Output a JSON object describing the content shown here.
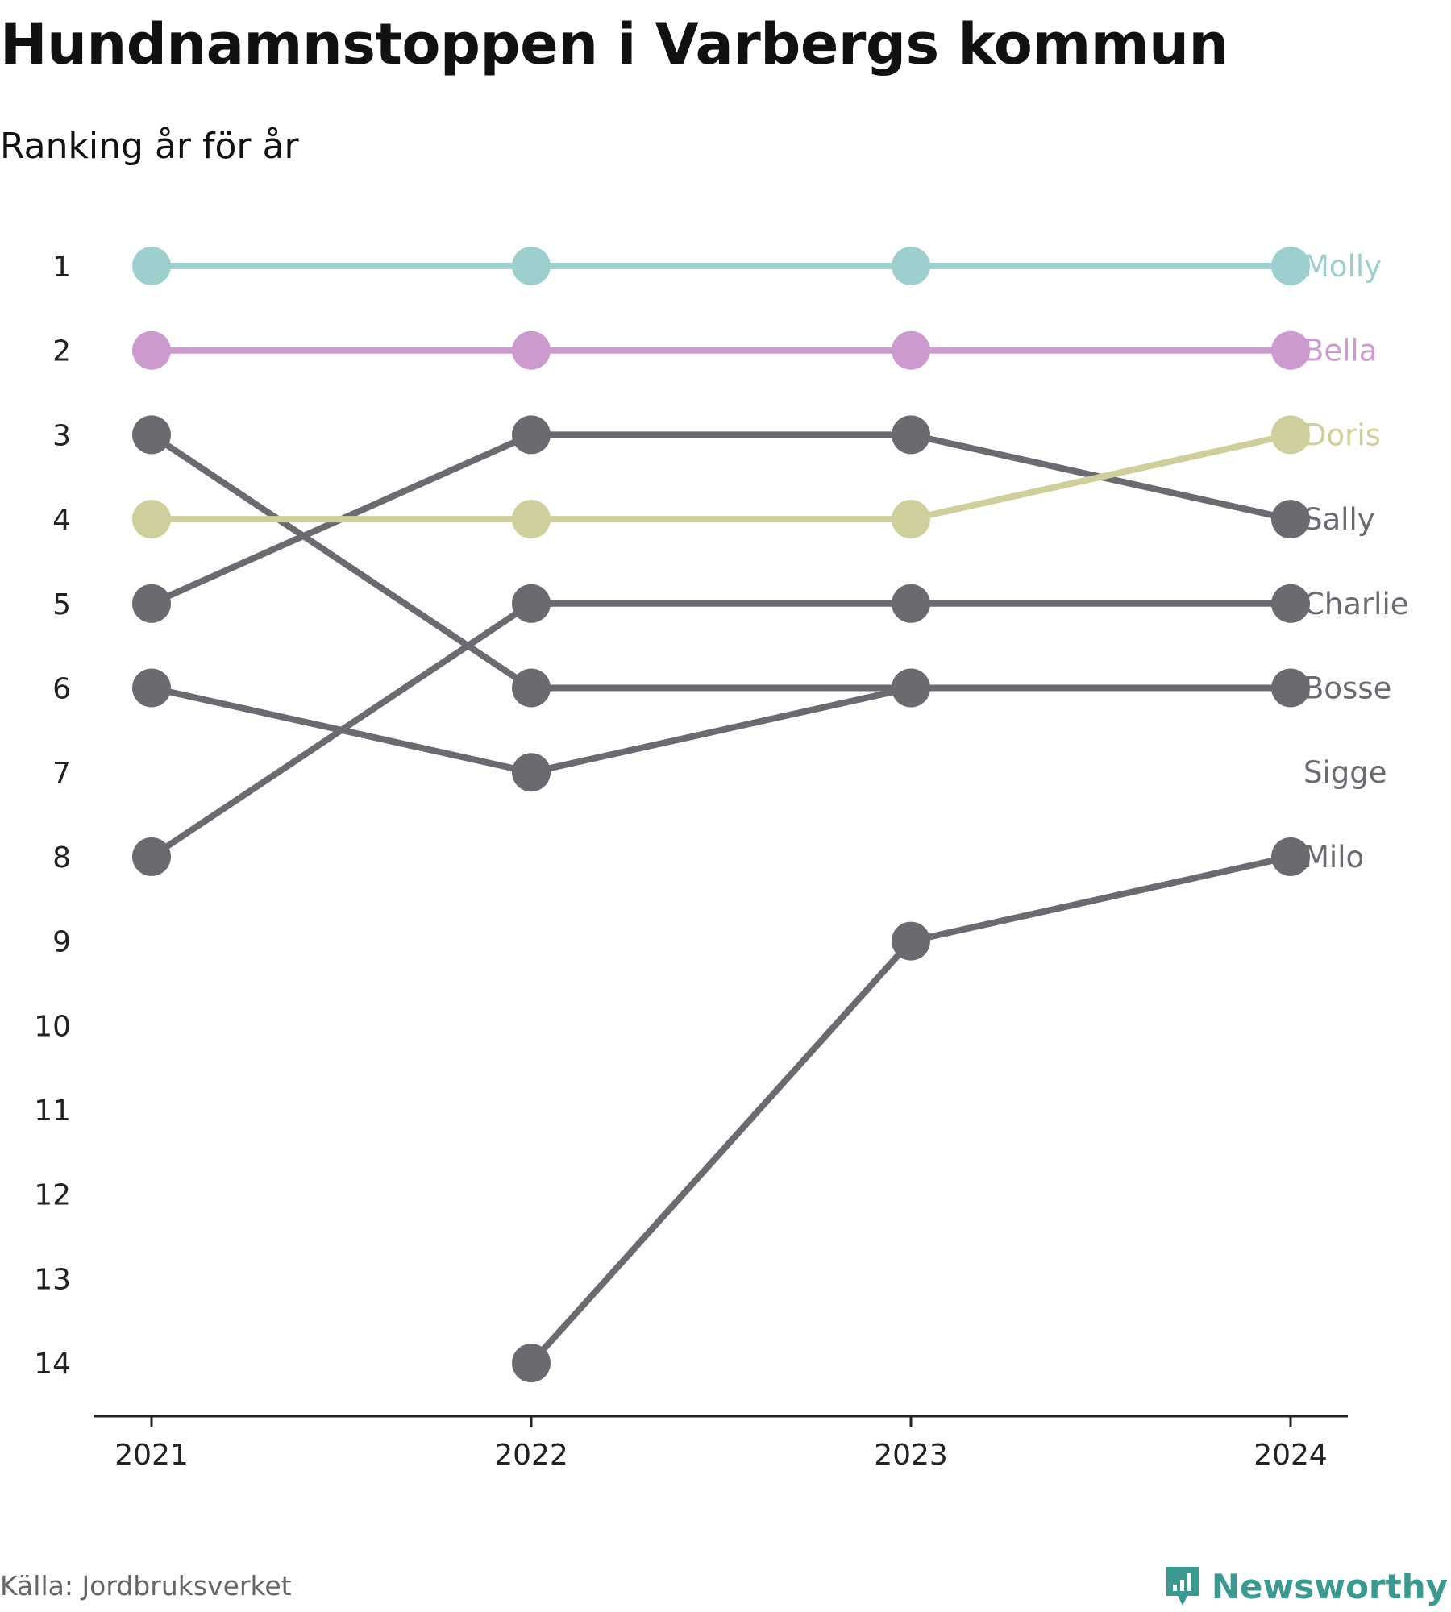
{
  "title": "Hundnamnstoppen i Varbergs kommun",
  "subtitle": "Ranking år för år",
  "source": "Källa: Jordbruksverket",
  "brand": "Newsworthy",
  "colors": {
    "accent": "#3a9a92",
    "muted": "#6b6a71"
  },
  "chart_data": {
    "type": "line",
    "title": "Hundnamnstoppen i Varbergs kommun",
    "subtitle": "Ranking år för år",
    "x": [
      "2021",
      "2022",
      "2023",
      "2024"
    ],
    "y_ticks": [
      1,
      2,
      3,
      4,
      5,
      6,
      7,
      8,
      9,
      10,
      11,
      12,
      13,
      14
    ],
    "ylim": [
      14,
      1
    ],
    "y_inverted": true,
    "grid": false,
    "legend": "direct labels at right",
    "series": [
      {
        "name": "Molly",
        "color": "#9ccfcd",
        "values": [
          1,
          1,
          1,
          1
        ]
      },
      {
        "name": "Bella",
        "color": "#cd9acf",
        "values": [
          2,
          2,
          2,
          2
        ]
      },
      {
        "name": "Doris",
        "color": "#cfcf9c",
        "values": [
          4,
          4,
          4,
          3
        ]
      },
      {
        "name": "Sally",
        "color": "#6b6a71",
        "values": [
          5,
          3,
          3,
          4
        ]
      },
      {
        "name": "Charlie",
        "color": "#6b6a71",
        "values": [
          8,
          5,
          5,
          5
        ]
      },
      {
        "name": "Bosse",
        "color": "#6b6a71",
        "values": [
          3,
          6,
          6,
          6
        ]
      },
      {
        "name": "Sigge",
        "color": "#6b6a71",
        "values": [
          6,
          7,
          6,
          null
        ]
      },
      {
        "name": "Milo",
        "color": "#6b6a71",
        "values": [
          null,
          14,
          9,
          8
        ]
      }
    ],
    "label_values": [
      1,
      2,
      3,
      4,
      5,
      6,
      7,
      8
    ]
  }
}
